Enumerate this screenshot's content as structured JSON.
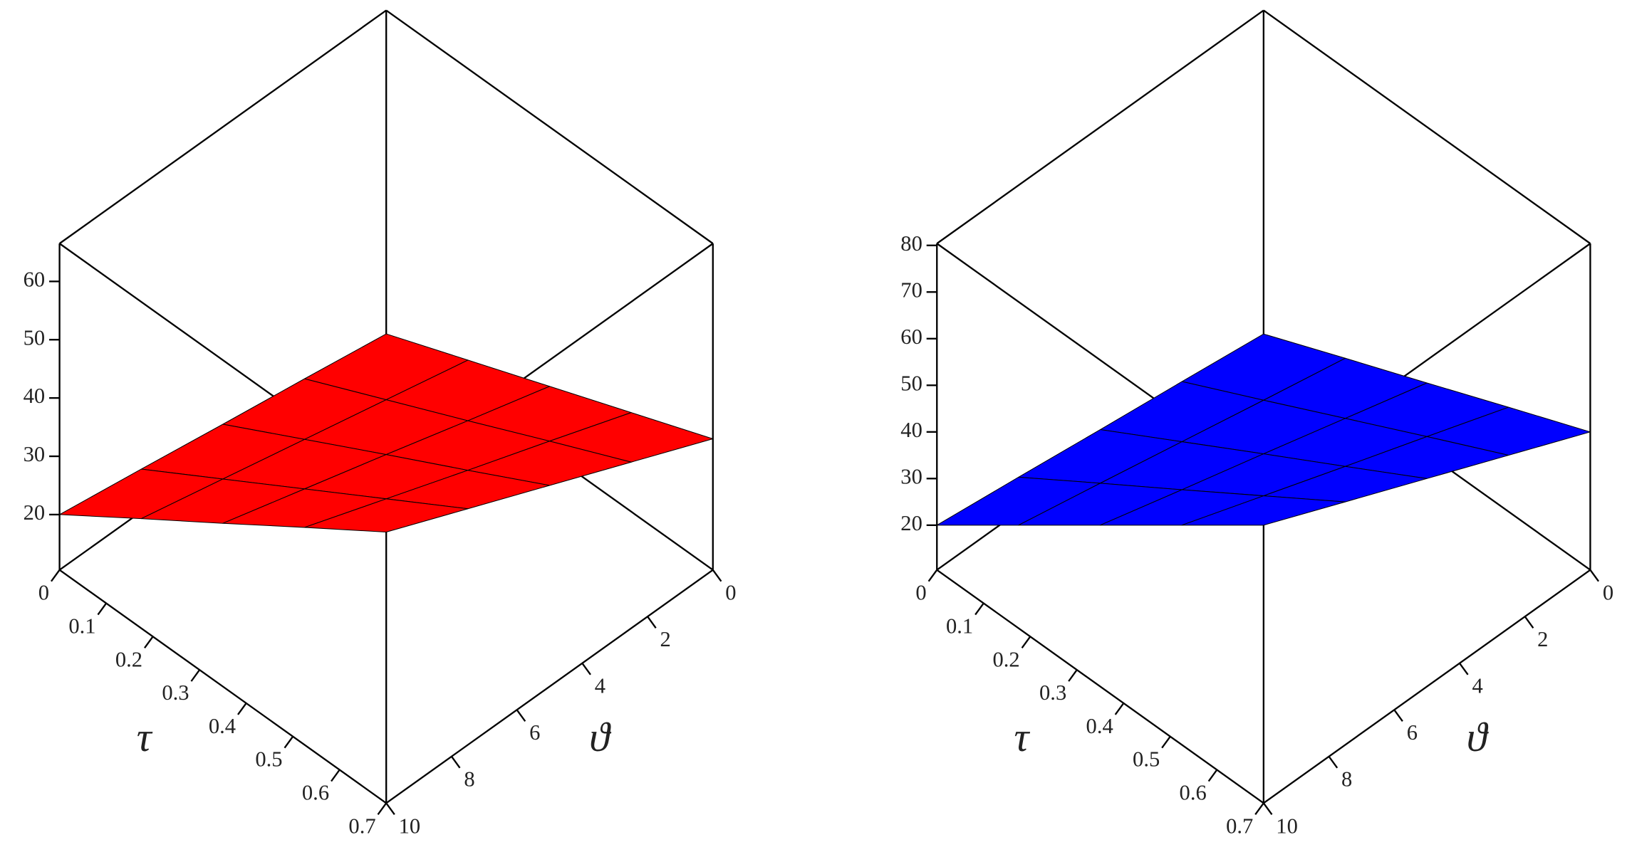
{
  "chart_data": [
    {
      "type": "surface",
      "color": "#ff0000",
      "x_label": "τ",
      "y_label": "ϑ",
      "x": [
        0,
        0.175,
        0.35,
        0.525,
        0.7
      ],
      "y": [
        0,
        2.5,
        5,
        7.5,
        10
      ],
      "z": [
        [
          11,
          13.3,
          15.5,
          17.8,
          20
        ],
        [
          16.5,
          19.7,
          22.9,
          26.1,
          29.3
        ],
        [
          22,
          26.1,
          30.3,
          34.4,
          38.5
        ],
        [
          27.5,
          32.6,
          37.6,
          42.7,
          47.8
        ],
        [
          33,
          39,
          45,
          51,
          57
        ]
      ],
      "xlim": [
        0,
        0.7
      ],
      "ylim": [
        0,
        10
      ],
      "zlim": [
        10.5,
        66.5
      ],
      "xticks": [
        0,
        0.1,
        0.2,
        0.3,
        0.4,
        0.5,
        0.6,
        0.7
      ],
      "yticks": [
        0,
        2,
        4,
        6,
        8,
        10
      ],
      "zticks": [
        20,
        30,
        40,
        50,
        60
      ]
    },
    {
      "type": "surface",
      "color": "#0000ff",
      "x_label": "τ",
      "y_label": "ϑ",
      "x": [
        0,
        0.175,
        0.35,
        0.525,
        0.7
      ],
      "y": [
        0,
        2.5,
        5,
        7.5,
        10
      ],
      "z": [
        [
          11,
          13.3,
          15.5,
          17.8,
          20
        ],
        [
          18.3,
          21.8,
          25.4,
          29,
          32.5
        ],
        [
          25.5,
          30.4,
          35.3,
          40.1,
          45
        ],
        [
          32.8,
          39,
          45.1,
          51.3,
          57.5
        ],
        [
          40,
          47.5,
          55,
          62.5,
          70
        ]
      ],
      "xlim": [
        0,
        0.7
      ],
      "ylim": [
        0,
        10
      ],
      "zlim": [
        10.4,
        80.4
      ],
      "xticks": [
        0,
        0.1,
        0.2,
        0.3,
        0.4,
        0.5,
        0.6,
        0.7
      ],
      "yticks": [
        0,
        2,
        4,
        6,
        8,
        10
      ],
      "zticks": [
        20,
        30,
        40,
        50,
        60,
        70,
        80
      ]
    }
  ]
}
